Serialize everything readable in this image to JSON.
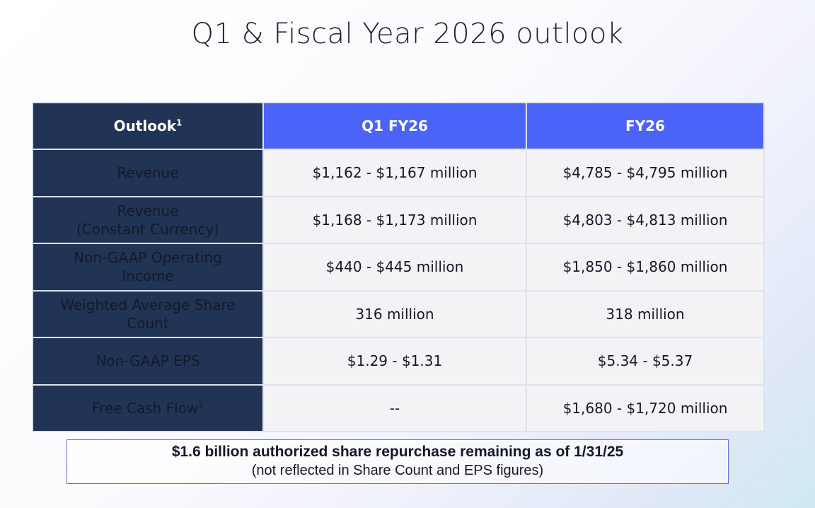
{
  "title": "Q1 & Fiscal Year 2026 outlook",
  "table": {
    "headers": {
      "label": "Outlook",
      "label_sup": "1",
      "q1": "Q1 FY26",
      "fy": "FY26"
    },
    "rows": [
      {
        "label": "Revenue",
        "label_sup": "",
        "q1": "$1,162 - $1,167 million",
        "fy": "$4,785 - $4,795 million"
      },
      {
        "label": "Revenue\n(Constant Currency)",
        "label_sup": "",
        "q1": "$1,168 - $1,173 million",
        "fy": "$4,803 - $4,813 million"
      },
      {
        "label": "Non-GAAP Operating\nIncome",
        "label_sup": "",
        "q1": "$440 - $445 million",
        "fy": "$1,850 - $1,860 million"
      },
      {
        "label": "Weighted Average Share\nCount",
        "label_sup": "",
        "q1": "316 million",
        "fy": "318 million"
      },
      {
        "label": "Non-GAAP EPS",
        "label_sup": "",
        "q1": "$1.29 - $1.31",
        "fy": "$5.34 - $5.37"
      },
      {
        "label": "Free Cash Flow",
        "label_sup": "2",
        "q1": "--",
        "fy": "$1,680 - $1,720 million"
      }
    ]
  },
  "note": {
    "line1": "$1.6 billion authorized share repurchase remaining as of 1/31/25",
    "line2": "(not reflected in Share Count and EPS figures)"
  },
  "colors": {
    "navy": "#213455",
    "accent_blue": "#4c63f7",
    "cell_bg": "#f3f3f5",
    "note_border": "#5b6cf0"
  }
}
